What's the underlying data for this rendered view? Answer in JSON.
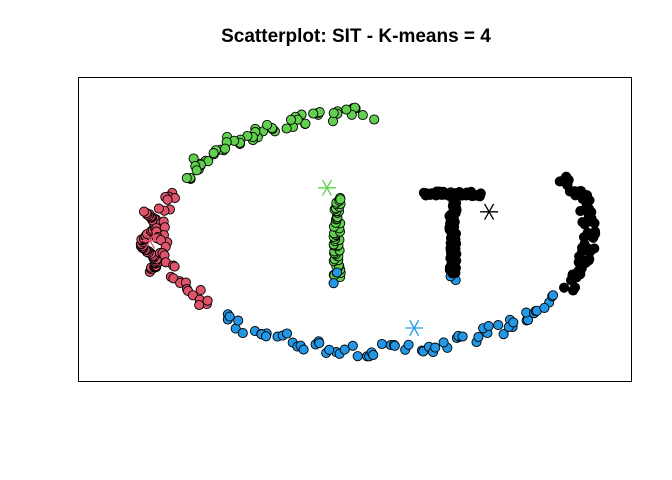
{
  "chart_data": {
    "type": "scatter",
    "title": "Scatterplot: SIT - K-means = 4",
    "xlabel": "",
    "ylabel": "",
    "xlim": [
      0,
      100
    ],
    "ylim": [
      0,
      100
    ],
    "axes_visible": false,
    "grid": false,
    "cluster_colors": {
      "1": "#DF536B",
      "2": "#61D04F",
      "3": "#2297E6",
      "4": "#000000"
    },
    "centroids": [
      {
        "cluster": 1,
        "x": 9.8,
        "y": 45.9
      },
      {
        "cluster": 2,
        "x": 44.5,
        "y": 64.6
      },
      {
        "cluster": 3,
        "x": 61.6,
        "y": 14.9
      },
      {
        "cluster": 4,
        "x": 76.3,
        "y": 56.1
      }
    ],
    "segments": [
      {
        "cluster": 1,
        "shape": "wave",
        "x0": 8,
        "x1": 11.3,
        "y0": 35,
        "y1": 56,
        "amp": 1.5,
        "cycles": 1.6,
        "n": 70
      },
      {
        "cluster": 1,
        "shape": "arc",
        "cx": 54,
        "cy": 49,
        "rx": 42,
        "ry": 42,
        "a0": 160,
        "a1": 219,
        "n": 38
      },
      {
        "cluster": 2,
        "shape": "arc",
        "cx": 54,
        "cy": 49,
        "rx": 42,
        "ry": 42,
        "a0": 92,
        "a1": 153,
        "n": 58
      },
      {
        "cluster": 2,
        "shape": "vline",
        "x": 46.5,
        "y0": 33,
        "y1": 61,
        "n": 55
      },
      {
        "cluster": 3,
        "shape": "arc",
        "cx": 54,
        "cy": 49,
        "rx": 42,
        "ry": 42,
        "a0": 226,
        "a1": 326,
        "n": 70
      },
      {
        "cluster": 3,
        "shape": "vline",
        "x": 46.5,
        "y0": 31,
        "y1": 34,
        "n": 2
      },
      {
        "cluster": 3,
        "shape": "vline",
        "x": 69.2,
        "y0": 31.5,
        "y1": 33,
        "n": 2
      },
      {
        "cluster": 4,
        "shape": "arc",
        "cx": 54,
        "cy": 49,
        "rx": 42,
        "ry": 42,
        "a0": 332,
        "a1": 388,
        "n": 65
      },
      {
        "cluster": 4,
        "shape": "hline",
        "y": 62.5,
        "x0": 63.5,
        "x1": 75,
        "n": 34
      },
      {
        "cluster": 4,
        "shape": "vline",
        "x": 69.2,
        "y0": 34,
        "y1": 62,
        "n": 70
      }
    ]
  }
}
